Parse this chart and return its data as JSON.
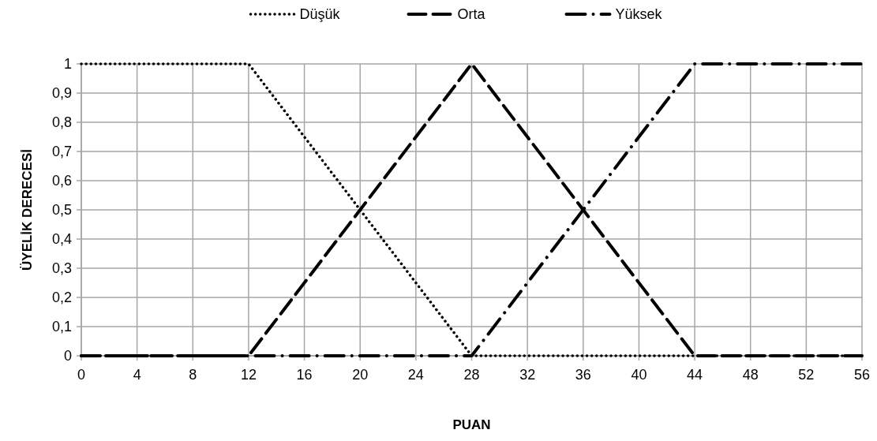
{
  "chart_data": {
    "type": "line",
    "xlabel": "PUAN",
    "ylabel": "ÜYELİK DERECESİ",
    "xlim": [
      0,
      56
    ],
    "xticks": [
      0,
      4,
      8,
      12,
      16,
      20,
      24,
      28,
      32,
      36,
      40,
      44,
      48,
      52,
      56
    ],
    "ylim": [
      0,
      1
    ],
    "yticks": [
      0,
      {
        "value": 0.1,
        "label": "0,1"
      },
      {
        "value": 0.2,
        "label": "0,2"
      },
      {
        "value": 0.3,
        "label": "0,3"
      },
      {
        "value": 0.4,
        "label": "0,4"
      },
      {
        "value": 0.5,
        "label": "0,5"
      },
      {
        "value": 0.6,
        "label": "0,6"
      },
      {
        "value": 0.7,
        "label": "0,7"
      },
      {
        "value": 0.8,
        "label": "0,8"
      },
      {
        "value": 0.9,
        "label": "0,9"
      },
      1
    ],
    "grid": true,
    "legend": "top",
    "marker": "none",
    "series": [
      {
        "name": "Düşük",
        "color": "#000000",
        "line_style": "dotted",
        "x": [
          0,
          12,
          28,
          56
        ],
        "values": [
          1,
          1,
          0,
          0
        ]
      },
      {
        "name": "Orta",
        "color": "#000000",
        "line_style": "dashed",
        "x": [
          0,
          12,
          28,
          44,
          56
        ],
        "values": [
          0,
          0,
          1,
          0,
          0
        ]
      },
      {
        "name": "Yüksek",
        "color": "#000000",
        "line_style": "dashdot",
        "x": [
          0,
          28,
          44,
          56
        ],
        "values": [
          0,
          0,
          1,
          1
        ]
      }
    ]
  }
}
